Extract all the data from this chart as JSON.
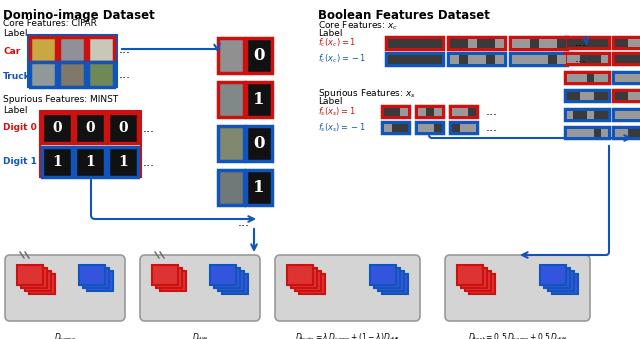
{
  "red": "#cc1111",
  "blue": "#1155bb",
  "dark_cell": "#444444",
  "light_cell": "#aaaaaa",
  "img_bg1": "#b8a060",
  "img_bg2": "#808090",
  "img_bg3": "#c0c0b0",
  "img_bg_truck1": "#909898",
  "img_bg_truck2": "#787060",
  "img_bg_truck3": "#708050",
  "panel_bg": "#d0d0d0",
  "panel_edge": "#aaaaaa",
  "title_left": "Domino-image Dataset",
  "title_right": "Boolean Features Dataset",
  "core_left": "Core Features: CIFAR",
  "spur_left": "Spurious Features: MINST",
  "label_str": "Label",
  "car_str": "Car",
  "truck_str": "Truck",
  "digit0_str": "Digit 0",
  "digit1_str": "Digit 1"
}
